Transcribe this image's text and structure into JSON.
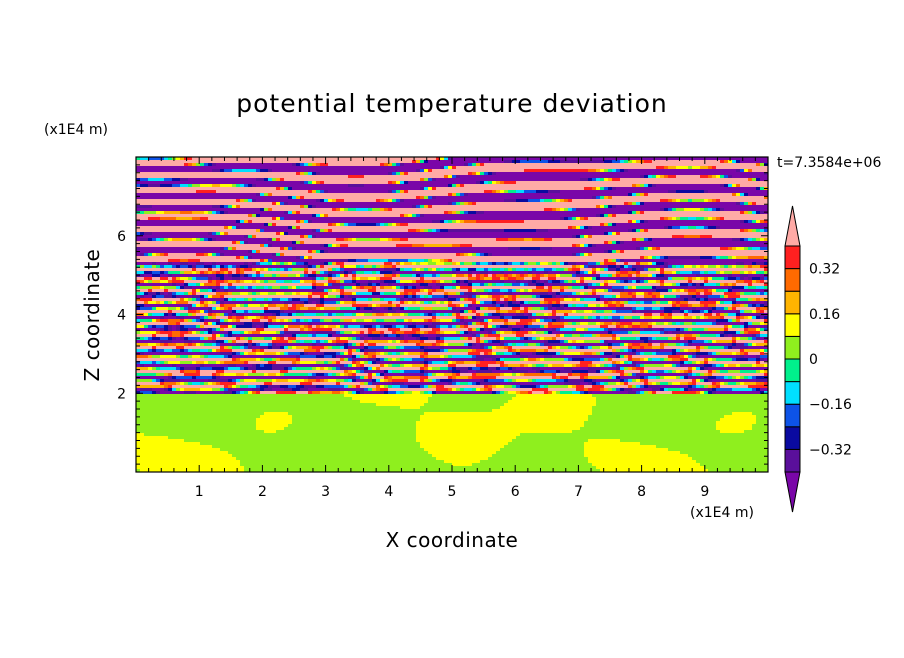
{
  "chart_data": {
    "type": "heatmap",
    "title": "potential temperature deviation",
    "xlabel": "X coordinate",
    "ylabel": "Z coordinate",
    "x_unit": "(x1E4 m)",
    "y_unit": "(x1E4 m)",
    "time_label": "t=7.3584e+06",
    "xlim": [
      0,
      10
    ],
    "ylim": [
      0,
      8
    ],
    "x_ticks": [
      "1",
      "2",
      "3",
      "4",
      "5",
      "6",
      "7",
      "8",
      "9"
    ],
    "y_ticks": [
      "2",
      "4",
      "6"
    ],
    "colorbar": {
      "levels": [
        -0.48,
        -0.4,
        -0.32,
        -0.24,
        -0.16,
        -0.08,
        0,
        0.08,
        0.16,
        0.24,
        0.32,
        0.4,
        0.48
      ],
      "colors": [
        "#7a06a8",
        "#5a0f9b",
        "#0a0aa0",
        "#0d53e8",
        "#00dfff",
        "#00f08c",
        "#8fef1e",
        "#ffff00",
        "#ffb400",
        "#ff6a00",
        "#ff2020",
        "#ffaaa6"
      ],
      "labels": [
        "0.32",
        "0.16",
        "0",
        "-0.16",
        "-0.32"
      ],
      "label_values": [
        0.32,
        0.16,
        0,
        -0.16,
        -0.32
      ],
      "extend": "both"
    },
    "regions": [
      {
        "z_range": [
          0,
          1.95
        ],
        "description_values": [
          0,
          0.08
        ]
      },
      {
        "z_range": [
          1.95,
          5.5
        ],
        "description_values": [
          -0.48,
          0.48
        ]
      },
      {
        "z_range": [
          5.5,
          8
        ],
        "description_values": [
          -0.48,
          0.48
        ]
      }
    ]
  },
  "colors": {
    "pink": "#ffaaa6",
    "purple": "#7a06a8",
    "green_low": "#00f08c",
    "green_high": "#8fef1e"
  }
}
